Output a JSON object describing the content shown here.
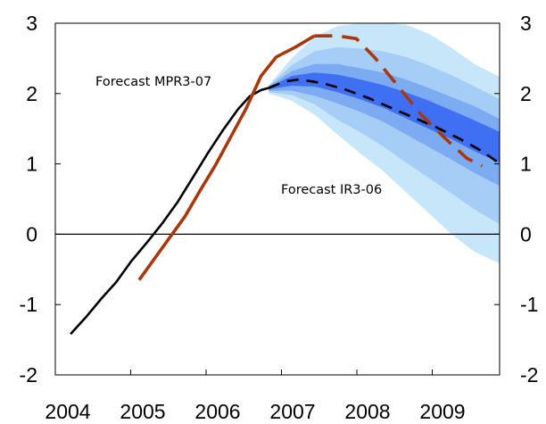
{
  "chart_data": {
    "type": "line",
    "title": "",
    "xlabel": "",
    "ylabel": "",
    "xlim": [
      2004,
      2009.9
    ],
    "ylim": [
      -2,
      3
    ],
    "x_ticks": [
      "2004",
      "2005",
      "2006",
      "2007",
      "2008",
      "2009"
    ],
    "y_ticks": [
      "3",
      "2",
      "1",
      "0",
      "-1",
      "-2"
    ],
    "y_ticks_right": [
      "3",
      "2",
      "1",
      "0",
      "-1",
      "-2"
    ],
    "grid": false,
    "annotations": [
      {
        "text": "Forecast MPR3-07",
        "target": "fan-and-brown-line"
      },
      {
        "text": "Forecast IR3-06",
        "target": "black-dashed-line"
      }
    ],
    "colors": {
      "history": "#000000",
      "forecast_ir": "#000000",
      "forecast_mpr": "#a8380c",
      "fan_outer": "#c8e6fa",
      "fan_2": "#a6cdf6",
      "fan_3": "#7cabf2",
      "fan_inner": "#3f6ff2",
      "zero_line": "#000000"
    },
    "series": [
      {
        "key": "history",
        "style": "solid",
        "points": [
          [
            2004.2,
            -1.42
          ],
          [
            2004.4,
            -1.18
          ],
          [
            2004.6,
            -0.92
          ],
          [
            2004.8,
            -0.68
          ],
          [
            2005.0,
            -0.38
          ],
          [
            2005.2,
            -0.12
          ],
          [
            2005.4,
            0.15
          ],
          [
            2005.6,
            0.45
          ],
          [
            2005.8,
            0.8
          ],
          [
            2006.0,
            1.15
          ],
          [
            2006.2,
            1.48
          ],
          [
            2006.4,
            1.78
          ],
          [
            2006.55,
            1.96
          ],
          [
            2006.7,
            2.05
          ],
          [
            2006.8,
            2.08
          ]
        ]
      },
      {
        "key": "forecast_ir",
        "style": "dashed",
        "points": [
          [
            2006.8,
            2.08
          ],
          [
            2007.0,
            2.17
          ],
          [
            2007.2,
            2.2
          ],
          [
            2007.5,
            2.15
          ],
          [
            2007.8,
            2.06
          ],
          [
            2008.1,
            1.94
          ],
          [
            2008.4,
            1.8
          ],
          [
            2008.7,
            1.66
          ],
          [
            2009.0,
            1.52
          ],
          [
            2009.3,
            1.36
          ],
          [
            2009.6,
            1.18
          ],
          [
            2009.9,
            0.95
          ]
        ]
      },
      {
        "key": "forecast_mpr",
        "style": "solid-then-dashed",
        "dash_from": 2007.4,
        "points": [
          [
            2005.1,
            -0.65
          ],
          [
            2005.3,
            -0.35
          ],
          [
            2005.5,
            -0.05
          ],
          [
            2005.7,
            0.25
          ],
          [
            2005.9,
            0.62
          ],
          [
            2006.1,
            0.98
          ],
          [
            2006.3,
            1.38
          ],
          [
            2006.5,
            1.78
          ],
          [
            2006.7,
            2.25
          ],
          [
            2006.9,
            2.52
          ],
          [
            2007.15,
            2.66
          ],
          [
            2007.4,
            2.82
          ],
          [
            2007.7,
            2.82
          ],
          [
            2007.95,
            2.78
          ],
          [
            2008.2,
            2.5
          ],
          [
            2008.5,
            2.1
          ],
          [
            2008.8,
            1.7
          ],
          [
            2009.1,
            1.38
          ],
          [
            2009.4,
            1.08
          ],
          [
            2009.6,
            0.97
          ]
        ]
      }
    ],
    "fan": {
      "x": [
        2006.8,
        2007.1,
        2007.4,
        2007.7,
        2008.0,
        2008.3,
        2008.6,
        2008.9,
        2009.2,
        2009.5,
        2009.9
      ],
      "center": [
        2.08,
        2.18,
        2.2,
        2.15,
        2.06,
        1.95,
        1.83,
        1.7,
        1.56,
        1.4,
        1.2
      ],
      "bands": [
        {
          "color_key": "fan_outer",
          "upper": [
            2.12,
            2.5,
            2.8,
            2.96,
            3.0,
            3.0,
            2.98,
            2.85,
            2.65,
            2.42,
            2.2
          ],
          "lower": [
            2.0,
            1.9,
            1.7,
            1.42,
            1.15,
            0.9,
            0.6,
            0.3,
            0.0,
            -0.25,
            -0.45
          ]
        },
        {
          "color_key": "fan_2",
          "upper": [
            2.11,
            2.4,
            2.6,
            2.66,
            2.64,
            2.6,
            2.52,
            2.4,
            2.26,
            2.1,
            1.88
          ],
          "lower": [
            2.02,
            1.98,
            1.85,
            1.63,
            1.45,
            1.25,
            1.02,
            0.8,
            0.58,
            0.35,
            0.1
          ]
        },
        {
          "color_key": "fan_3",
          "upper": [
            2.1,
            2.32,
            2.42,
            2.42,
            2.36,
            2.3,
            2.2,
            2.08,
            1.95,
            1.82,
            1.6
          ],
          "lower": [
            2.04,
            2.04,
            1.97,
            1.86,
            1.74,
            1.6,
            1.42,
            1.24,
            1.06,
            0.87,
            0.65
          ]
        },
        {
          "color_key": "fan_inner",
          "upper": [
            2.09,
            2.25,
            2.3,
            2.27,
            2.2,
            2.12,
            2.02,
            1.9,
            1.76,
            1.62,
            1.42
          ],
          "lower": [
            2.06,
            2.11,
            2.1,
            2.02,
            1.92,
            1.8,
            1.65,
            1.5,
            1.35,
            1.18,
            0.98
          ]
        }
      ]
    }
  }
}
